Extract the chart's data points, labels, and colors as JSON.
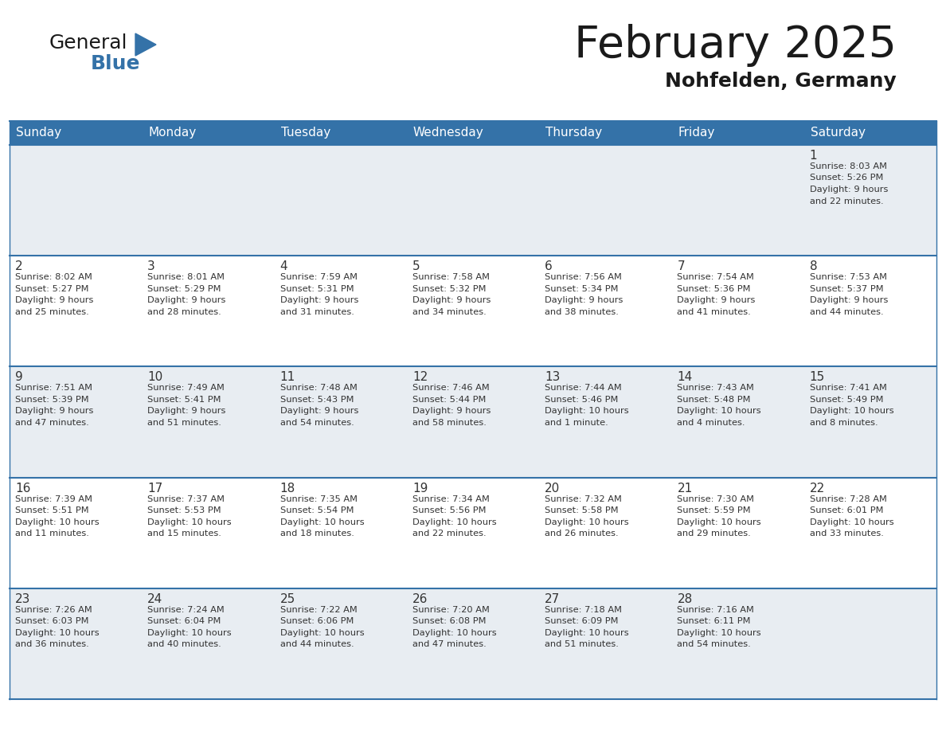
{
  "title": "February 2025",
  "subtitle": "Nohfelden, Germany",
  "header_bg_color": "#3472a8",
  "header_text_color": "#ffffff",
  "cell_bg_white": "#ffffff",
  "cell_bg_gray": "#e8edf2",
  "day_names": [
    "Sunday",
    "Monday",
    "Tuesday",
    "Wednesday",
    "Thursday",
    "Friday",
    "Saturday"
  ],
  "title_color": "#1a1a1a",
  "subtitle_color": "#1a1a1a",
  "day_number_color": "#333333",
  "info_text_color": "#333333",
  "line_color": "#3472a8",
  "logo_general_color": "#1a1a1a",
  "logo_blue_color": "#3472a8",
  "logo_triangle_color": "#3472a8",
  "calendar_data": [
    [
      {
        "day": null,
        "info": ""
      },
      {
        "day": null,
        "info": ""
      },
      {
        "day": null,
        "info": ""
      },
      {
        "day": null,
        "info": ""
      },
      {
        "day": null,
        "info": ""
      },
      {
        "day": null,
        "info": ""
      },
      {
        "day": 1,
        "info": "Sunrise: 8:03 AM\nSunset: 5:26 PM\nDaylight: 9 hours\nand 22 minutes."
      }
    ],
    [
      {
        "day": 2,
        "info": "Sunrise: 8:02 AM\nSunset: 5:27 PM\nDaylight: 9 hours\nand 25 minutes."
      },
      {
        "day": 3,
        "info": "Sunrise: 8:01 AM\nSunset: 5:29 PM\nDaylight: 9 hours\nand 28 minutes."
      },
      {
        "day": 4,
        "info": "Sunrise: 7:59 AM\nSunset: 5:31 PM\nDaylight: 9 hours\nand 31 minutes."
      },
      {
        "day": 5,
        "info": "Sunrise: 7:58 AM\nSunset: 5:32 PM\nDaylight: 9 hours\nand 34 minutes."
      },
      {
        "day": 6,
        "info": "Sunrise: 7:56 AM\nSunset: 5:34 PM\nDaylight: 9 hours\nand 38 minutes."
      },
      {
        "day": 7,
        "info": "Sunrise: 7:54 AM\nSunset: 5:36 PM\nDaylight: 9 hours\nand 41 minutes."
      },
      {
        "day": 8,
        "info": "Sunrise: 7:53 AM\nSunset: 5:37 PM\nDaylight: 9 hours\nand 44 minutes."
      }
    ],
    [
      {
        "day": 9,
        "info": "Sunrise: 7:51 AM\nSunset: 5:39 PM\nDaylight: 9 hours\nand 47 minutes."
      },
      {
        "day": 10,
        "info": "Sunrise: 7:49 AM\nSunset: 5:41 PM\nDaylight: 9 hours\nand 51 minutes."
      },
      {
        "day": 11,
        "info": "Sunrise: 7:48 AM\nSunset: 5:43 PM\nDaylight: 9 hours\nand 54 minutes."
      },
      {
        "day": 12,
        "info": "Sunrise: 7:46 AM\nSunset: 5:44 PM\nDaylight: 9 hours\nand 58 minutes."
      },
      {
        "day": 13,
        "info": "Sunrise: 7:44 AM\nSunset: 5:46 PM\nDaylight: 10 hours\nand 1 minute."
      },
      {
        "day": 14,
        "info": "Sunrise: 7:43 AM\nSunset: 5:48 PM\nDaylight: 10 hours\nand 4 minutes."
      },
      {
        "day": 15,
        "info": "Sunrise: 7:41 AM\nSunset: 5:49 PM\nDaylight: 10 hours\nand 8 minutes."
      }
    ],
    [
      {
        "day": 16,
        "info": "Sunrise: 7:39 AM\nSunset: 5:51 PM\nDaylight: 10 hours\nand 11 minutes."
      },
      {
        "day": 17,
        "info": "Sunrise: 7:37 AM\nSunset: 5:53 PM\nDaylight: 10 hours\nand 15 minutes."
      },
      {
        "day": 18,
        "info": "Sunrise: 7:35 AM\nSunset: 5:54 PM\nDaylight: 10 hours\nand 18 minutes."
      },
      {
        "day": 19,
        "info": "Sunrise: 7:34 AM\nSunset: 5:56 PM\nDaylight: 10 hours\nand 22 minutes."
      },
      {
        "day": 20,
        "info": "Sunrise: 7:32 AM\nSunset: 5:58 PM\nDaylight: 10 hours\nand 26 minutes."
      },
      {
        "day": 21,
        "info": "Sunrise: 7:30 AM\nSunset: 5:59 PM\nDaylight: 10 hours\nand 29 minutes."
      },
      {
        "day": 22,
        "info": "Sunrise: 7:28 AM\nSunset: 6:01 PM\nDaylight: 10 hours\nand 33 minutes."
      }
    ],
    [
      {
        "day": 23,
        "info": "Sunrise: 7:26 AM\nSunset: 6:03 PM\nDaylight: 10 hours\nand 36 minutes."
      },
      {
        "day": 24,
        "info": "Sunrise: 7:24 AM\nSunset: 6:04 PM\nDaylight: 10 hours\nand 40 minutes."
      },
      {
        "day": 25,
        "info": "Sunrise: 7:22 AM\nSunset: 6:06 PM\nDaylight: 10 hours\nand 44 minutes."
      },
      {
        "day": 26,
        "info": "Sunrise: 7:20 AM\nSunset: 6:08 PM\nDaylight: 10 hours\nand 47 minutes."
      },
      {
        "day": 27,
        "info": "Sunrise: 7:18 AM\nSunset: 6:09 PM\nDaylight: 10 hours\nand 51 minutes."
      },
      {
        "day": 28,
        "info": "Sunrise: 7:16 AM\nSunset: 6:11 PM\nDaylight: 10 hours\nand 54 minutes."
      },
      {
        "day": null,
        "info": ""
      }
    ]
  ]
}
